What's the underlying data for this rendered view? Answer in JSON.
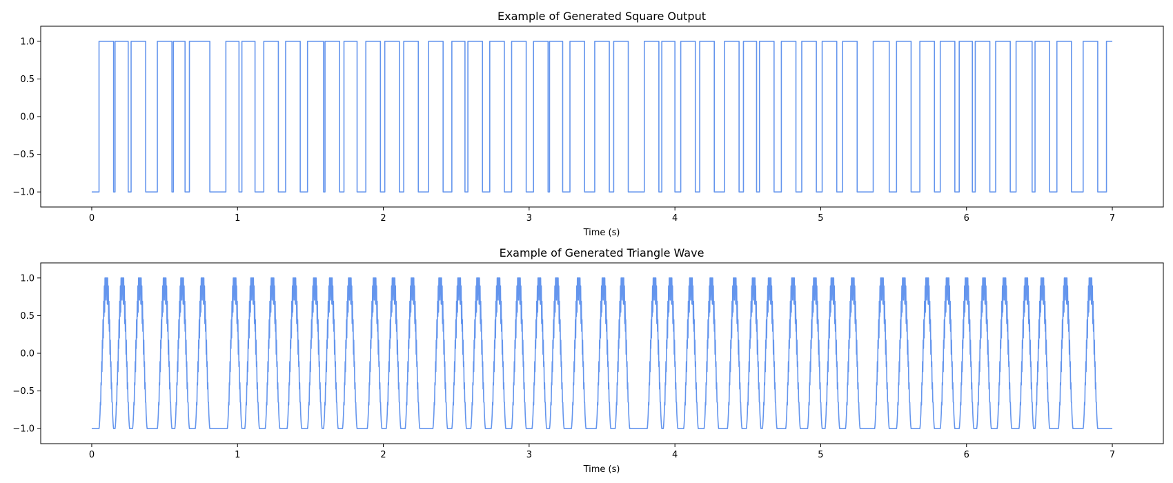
{
  "chart_data": [
    {
      "type": "line",
      "title": "Example of Generated Square Output",
      "xlabel": "Time (s)",
      "ylabel": "",
      "xlim": [
        -0.35,
        7.35
      ],
      "ylim": [
        -1.2,
        1.2
      ],
      "xticks": [
        0,
        1,
        2,
        3,
        4,
        5,
        6,
        7
      ],
      "xtick_labels": [
        "0",
        "1",
        "2",
        "3",
        "4",
        "5",
        "6",
        "7"
      ],
      "yticks": [
        -1.0,
        -0.5,
        0.0,
        0.5,
        1.0
      ],
      "ytick_labels": [
        "−1.0",
        "−0.5",
        "0.0",
        "0.5",
        "1.0"
      ],
      "grid": false,
      "color": "#6495ED",
      "series": [
        {
          "kind": "square",
          "low": -1.0,
          "high": 1.0,
          "x_end": 7.0,
          "high_intervals": [
            [
              0.05,
              0.15
            ],
            [
              0.16,
              0.25
            ],
            [
              0.27,
              0.37
            ],
            [
              0.45,
              0.55
            ],
            [
              0.56,
              0.64
            ],
            [
              0.67,
              0.81
            ],
            [
              0.92,
              1.01
            ],
            [
              1.03,
              1.12
            ],
            [
              1.18,
              1.28
            ],
            [
              1.33,
              1.43
            ],
            [
              1.48,
              1.59
            ],
            [
              1.6,
              1.7
            ],
            [
              1.73,
              1.82
            ],
            [
              1.88,
              1.98
            ],
            [
              2.01,
              2.11
            ],
            [
              2.14,
              2.24
            ],
            [
              2.31,
              2.41
            ],
            [
              2.47,
              2.56
            ],
            [
              2.58,
              2.68
            ],
            [
              2.73,
              2.83
            ],
            [
              2.88,
              2.98
            ],
            [
              3.03,
              3.13
            ],
            [
              3.14,
              3.23
            ],
            [
              3.28,
              3.38
            ],
            [
              3.45,
              3.55
            ],
            [
              3.58,
              3.68
            ],
            [
              3.79,
              3.89
            ],
            [
              3.91,
              4.0
            ],
            [
              4.04,
              4.14
            ],
            [
              4.17,
              4.27
            ],
            [
              4.34,
              4.44
            ],
            [
              4.47,
              4.56
            ],
            [
              4.58,
              4.68
            ],
            [
              4.73,
              4.83
            ],
            [
              4.87,
              4.97
            ],
            [
              5.01,
              5.11
            ],
            [
              5.15,
              5.25
            ],
            [
              5.36,
              5.47
            ],
            [
              5.52,
              5.62
            ],
            [
              5.68,
              5.78
            ],
            [
              5.82,
              5.92
            ],
            [
              5.95,
              6.04
            ],
            [
              6.06,
              6.16
            ],
            [
              6.2,
              6.3
            ],
            [
              6.34,
              6.45
            ],
            [
              6.47,
              6.57
            ],
            [
              6.62,
              6.72
            ],
            [
              6.8,
              6.9
            ],
            [
              6.96,
              7.0
            ]
          ]
        }
      ]
    },
    {
      "type": "line",
      "title": "Example of Generated Triangle Wave",
      "xlabel": "Time (s)",
      "ylabel": "",
      "xlim": [
        -0.35,
        7.35
      ],
      "ylim": [
        -1.2,
        1.2
      ],
      "xticks": [
        0,
        1,
        2,
        3,
        4,
        5,
        6,
        7
      ],
      "xtick_labels": [
        "0",
        "1",
        "2",
        "3",
        "4",
        "5",
        "6",
        "7"
      ],
      "yticks": [
        -1.0,
        -0.5,
        0.0,
        0.5,
        1.0
      ],
      "ytick_labels": [
        "−1.0",
        "−0.5",
        "0.0",
        "0.5",
        "1.0"
      ],
      "grid": false,
      "color": "#6495ED",
      "series": [
        {
          "kind": "pulse-train",
          "baseline": -1.0,
          "peak": 1.0,
          "x_end": 7.0,
          "pulse_width": 0.1,
          "pulse_centers": [
            0.1,
            0.21,
            0.33,
            0.5,
            0.62,
            0.76,
            0.98,
            1.1,
            1.24,
            1.39,
            1.53,
            1.64,
            1.77,
            1.94,
            2.07,
            2.2,
            2.39,
            2.52,
            2.65,
            2.79,
            2.93,
            3.07,
            3.19,
            3.34,
            3.51,
            3.64,
            3.86,
            3.97,
            4.11,
            4.25,
            4.41,
            4.54,
            4.65,
            4.81,
            4.96,
            5.08,
            5.22,
            5.42,
            5.57,
            5.73,
            5.87,
            6.0,
            6.12,
            6.26,
            6.41,
            6.52,
            6.68,
            6.85
          ]
        }
      ]
    }
  ]
}
